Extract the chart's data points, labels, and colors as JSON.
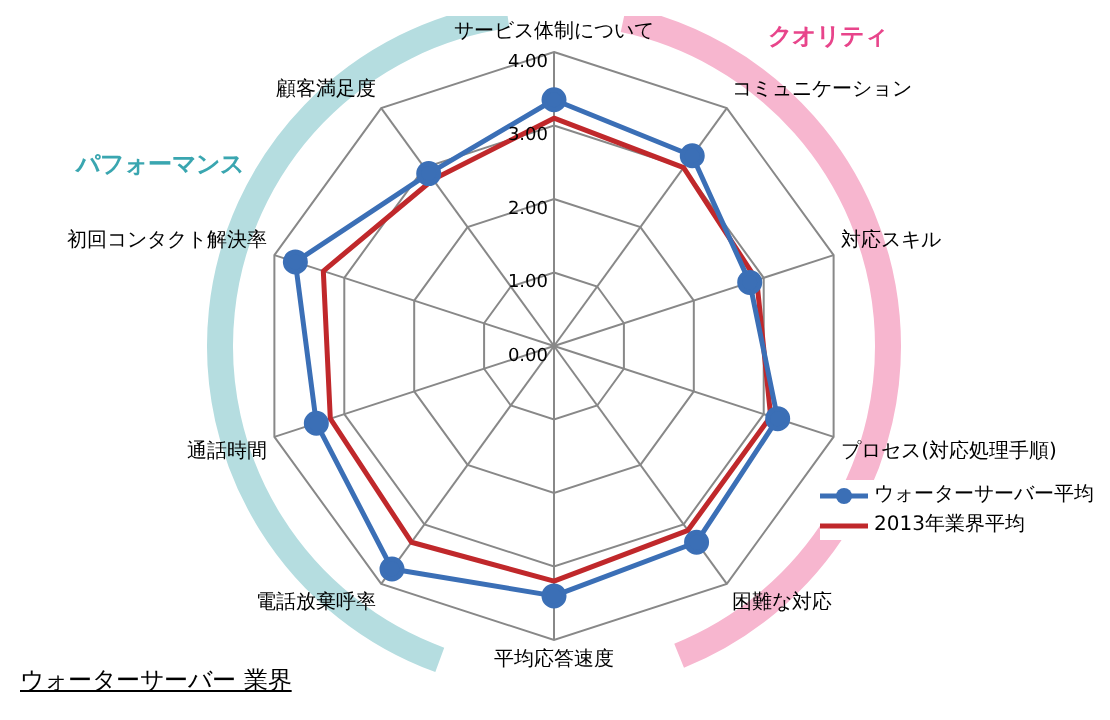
{
  "chart_data": {
    "type": "radar",
    "title": "ウォーターサーバー 業界",
    "categories": [
      "サービス体制について",
      "コミュニケーション",
      "対応スキル",
      "プロセス(対応処理手順)",
      "困難な対応",
      "平均応答速度",
      "電話放棄呼率",
      "通話時間",
      "初回コンタクト解決率",
      "顧客満足度"
    ],
    "series": [
      {
        "name": "ウォーターサーバー平均",
        "color": "#3b6fb6",
        "marker": "circle",
        "values": [
          3.35,
          3.2,
          2.8,
          3.2,
          3.3,
          3.4,
          3.75,
          3.4,
          3.7,
          2.9
        ]
      },
      {
        "name": "2013年業界平均",
        "color": "#c0282b",
        "marker": "none",
        "values": [
          3.1,
          3.0,
          2.9,
          3.1,
          3.1,
          3.2,
          3.3,
          3.2,
          3.3,
          2.8
        ]
      }
    ],
    "ylim": [
      0,
      4
    ],
    "yticks": [
      {
        "value": 0,
        "label": "0.00"
      },
      {
        "value": 1,
        "label": "1.00"
      },
      {
        "value": 2,
        "label": "2.00"
      },
      {
        "value": 3,
        "label": "3.00"
      },
      {
        "value": 4,
        "label": "4.00"
      }
    ],
    "grid": true,
    "legend": "right",
    "annotations": [
      "クオリティ",
      "パフォーマンス"
    ]
  }
}
